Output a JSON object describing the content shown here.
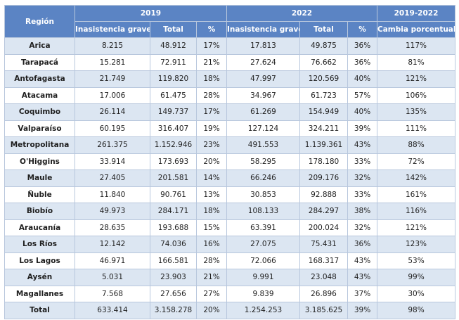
{
  "table": {
    "header": {
      "region": "Región",
      "groups": [
        "2019",
        "2022",
        "2019-2022"
      ],
      "columns": [
        "Inasistencia grave",
        "Total",
        "%",
        "Inasistencia grave",
        "Total",
        "%",
        "Cambia porcentual"
      ]
    },
    "rows": [
      [
        "Arica",
        "8.215",
        "48.912",
        "17%",
        "17.813",
        "49.875",
        "36%",
        "117%"
      ],
      [
        "Tarapacá",
        "15.281",
        "72.911",
        "21%",
        "27.624",
        "76.662",
        "36%",
        "81%"
      ],
      [
        "Antofagasta",
        "21.749",
        "119.820",
        "18%",
        "47.997",
        "120.569",
        "40%",
        "121%"
      ],
      [
        "Atacama",
        "17.006",
        "61.475",
        "28%",
        "34.967",
        "61.723",
        "57%",
        "106%"
      ],
      [
        "Coquimbo",
        "26.114",
        "149.737",
        "17%",
        "61.269",
        "154.949",
        "40%",
        "135%"
      ],
      [
        "Valparaíso",
        "60.195",
        "316.407",
        "19%",
        "127.124",
        "324.211",
        "39%",
        "111%"
      ],
      [
        "Metropolitana",
        "261.375",
        "1.152.946",
        "23%",
        "491.553",
        "1.139.361",
        "43%",
        "88%"
      ],
      [
        "O'Higgins",
        "33.914",
        "173.693",
        "20%",
        "58.295",
        "178.180",
        "33%",
        "72%"
      ],
      [
        "Maule",
        "27.405",
        "201.581",
        "14%",
        "66.246",
        "209.176",
        "32%",
        "142%"
      ],
      [
        "Ñuble",
        "11.840",
        "90.761",
        "13%",
        "30.853",
        "92.888",
        "33%",
        "161%"
      ],
      [
        "Biobío",
        "49.973",
        "284.171",
        "18%",
        "108.133",
        "284.297",
        "38%",
        "116%"
      ],
      [
        "Araucanía",
        "28.635",
        "193.688",
        "15%",
        "63.391",
        "200.024",
        "32%",
        "121%"
      ],
      [
        "Los Ríos",
        "12.142",
        "74.036",
        "16%",
        "27.075",
        "75.431",
        "36%",
        "123%"
      ],
      [
        "Los Lagos",
        "46.971",
        "166.581",
        "28%",
        "72.066",
        "168.317",
        "43%",
        "53%"
      ],
      [
        "Aysén",
        "5.031",
        "23.903",
        "21%",
        "9.991",
        "23.048",
        "43%",
        "99%"
      ],
      [
        "Magallanes",
        "7.568",
        "27.656",
        "27%",
        "9.839",
        "26.896",
        "37%",
        "30%"
      ],
      [
        "Total",
        "633.414",
        "3.158.278",
        "20%",
        "1.254.253",
        "3.185.625",
        "39%",
        "98%"
      ]
    ]
  }
}
